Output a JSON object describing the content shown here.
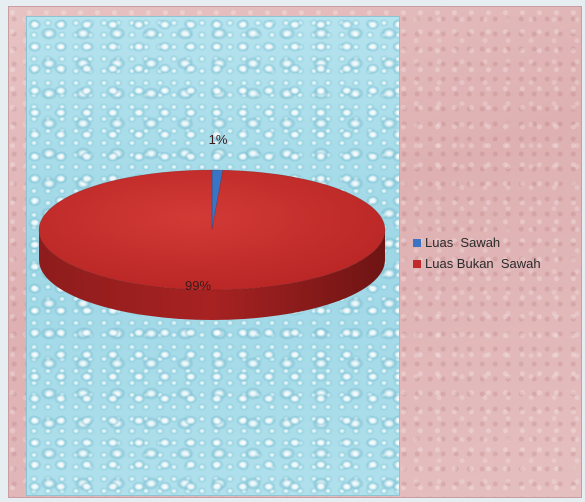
{
  "chart_data": {
    "type": "pie",
    "categories": [
      "Luas  Sawah",
      "Luas Bukan  Sawah"
    ],
    "values": [
      1,
      99
    ],
    "data_labels": [
      "1%",
      "99%"
    ],
    "colors": [
      "#3a74c4",
      "#c0282a"
    ],
    "legend_position": "right",
    "style": "3d"
  }
}
